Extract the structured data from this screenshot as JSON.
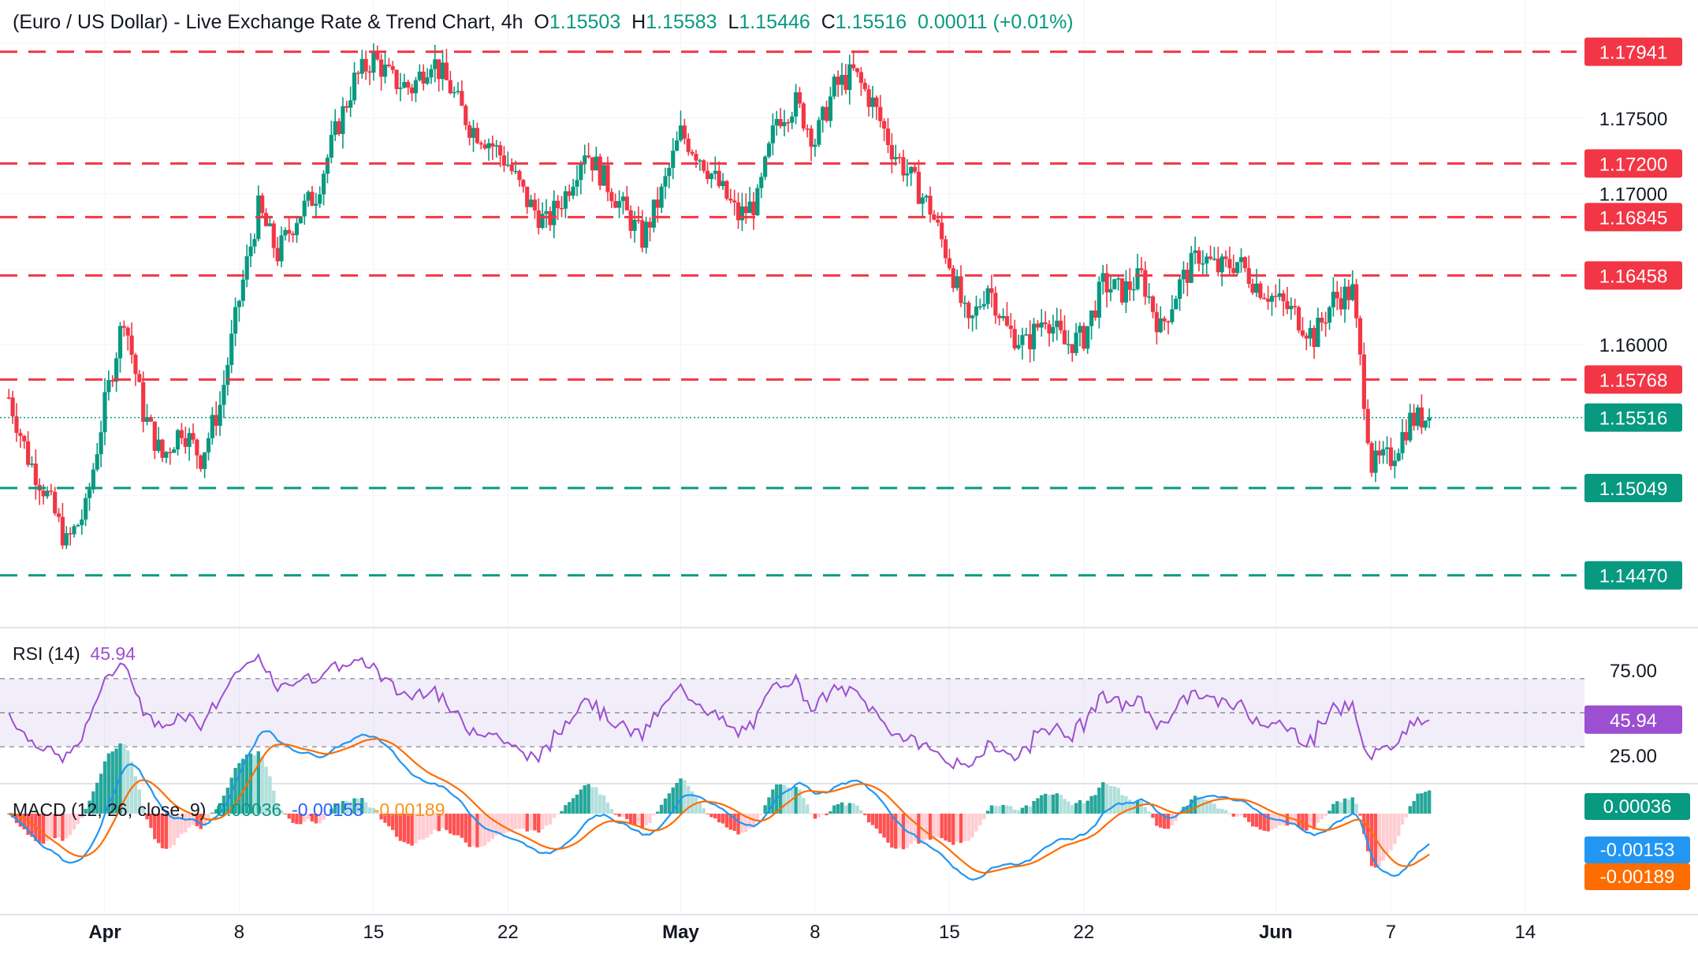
{
  "header": {
    "symbol": "(Euro / US Dollar) - Live Exchange Rate & Trend Chart, 4h",
    "o_label": "O",
    "o_value": "1.15503",
    "h_label": "H",
    "h_value": "1.15583",
    "l_label": "L",
    "l_value": "1.15446",
    "c_label": "C",
    "c_value": "1.15516",
    "change": "0.00011 (+0.01%)"
  },
  "rsi_panel": {
    "title": "RSI (14)",
    "value": "45.94",
    "upper": "75.00",
    "lower": "25.00"
  },
  "macd_panel": {
    "title": "MACD (12, 26, close, 9)",
    "hist": "0.00036",
    "macd": "-0.00153",
    "signal": "-0.00189"
  },
  "colors": {
    "up": "#089981",
    "down": "#f23645",
    "rsi": "#9c4fd0",
    "macd": "#2196f3",
    "signal": "#ff6d00"
  },
  "chart_data": {
    "type": "candlestick",
    "timeframe": "4h",
    "x_ticks": [
      "Apr",
      "8",
      "15",
      "22",
      "May",
      "8",
      "15",
      "22",
      "Jun",
      "7",
      "14"
    ],
    "y_ticks": [
      "1.17500",
      "1.17000",
      "1.16000"
    ],
    "ylim": [
      1.1405,
      1.1815
    ],
    "last_price": "1.15516",
    "resistance_levels": [
      "1.17941",
      "1.17200",
      "1.16845",
      "1.16458",
      "1.15768"
    ],
    "support_levels": [
      "1.15049",
      "1.14470"
    ],
    "anchors": [
      [
        "Mar 27",
        1.1565
      ],
      [
        "Mar 28",
        1.1525
      ],
      [
        "Mar 29",
        1.15
      ],
      [
        "Mar 30",
        1.1468
      ],
      [
        "Mar 31",
        1.149
      ],
      [
        "Apr 1",
        1.156
      ],
      [
        "Apr 2",
        1.162
      ],
      [
        "Apr 3",
        1.1555
      ],
      [
        "Apr 4",
        1.1525
      ],
      [
        "Apr 5",
        1.1545
      ],
      [
        "Apr 6",
        1.1525
      ],
      [
        "Apr 7",
        1.156
      ],
      [
        "Apr 8",
        1.163
      ],
      [
        "Apr 9",
        1.169
      ],
      [
        "Apr 10",
        1.166
      ],
      [
        "Apr 11",
        1.1685
      ],
      [
        "Apr 12",
        1.17
      ],
      [
        "Apr 13",
        1.174
      ],
      [
        "Apr 14",
        1.1775
      ],
      [
        "Apr 15",
        1.179
      ],
      [
        "Apr 16",
        1.1775
      ],
      [
        "Apr 17",
        1.177
      ],
      [
        "Apr 18",
        1.179
      ],
      [
        "Apr 19",
        1.177
      ],
      [
        "Apr 20",
        1.1745
      ],
      [
        "Apr 21",
        1.1735
      ],
      [
        "Apr 22",
        1.172
      ],
      [
        "Apr 23",
        1.1695
      ],
      [
        "Apr 24",
        1.168
      ],
      [
        "Apr 25",
        1.17
      ],
      [
        "Apr 26",
        1.173
      ],
      [
        "Apr 27",
        1.171
      ],
      [
        "Apr 28",
        1.169
      ],
      [
        "Apr 29",
        1.167
      ],
      [
        "Apr 30",
        1.17
      ],
      [
        "May 1",
        1.174
      ],
      [
        "May 2",
        1.1725
      ],
      [
        "May 3",
        1.1705
      ],
      [
        "May 4",
        1.1685
      ],
      [
        "May 5",
        1.1695
      ],
      [
        "May 6",
        1.175
      ],
      [
        "May 7",
        1.176
      ],
      [
        "May 8",
        1.1735
      ],
      [
        "May 9",
        1.177
      ],
      [
        "May 10",
        1.178
      ],
      [
        "May 11",
        1.176
      ],
      [
        "May 12",
        1.173
      ],
      [
        "May 13",
        1.171
      ],
      [
        "May 14",
        1.169
      ],
      [
        "May 15",
        1.1655
      ],
      [
        "May 16",
        1.161
      ],
      [
        "May 17",
        1.164
      ],
      [
        "May 18",
        1.161
      ],
      [
        "May 19",
        1.16
      ],
      [
        "May 20",
        1.162
      ],
      [
        "May 21",
        1.16
      ],
      [
        "May 22",
        1.1605
      ],
      [
        "May 23",
        1.164
      ],
      [
        "May 24",
        1.1635
      ],
      [
        "May 25",
        1.1645
      ],
      [
        "May 26",
        1.161
      ],
      [
        "May 27",
        1.164
      ],
      [
        "May 28",
        1.166
      ],
      [
        "May 29",
        1.165
      ],
      [
        "May 30",
        1.1655
      ],
      [
        "May 31",
        1.164
      ],
      [
        "Jun 1",
        1.163
      ],
      [
        "Jun 2",
        1.162
      ],
      [
        "Jun 3",
        1.1605
      ],
      [
        "Jun 4",
        1.163
      ],
      [
        "Jun 5",
        1.1635
      ],
      [
        "Jun 6",
        1.152
      ],
      [
        "Jun 7",
        1.1525
      ],
      [
        "Jun 8",
        1.155
      ],
      [
        "Jun 9",
        1.1552
      ]
    ]
  }
}
